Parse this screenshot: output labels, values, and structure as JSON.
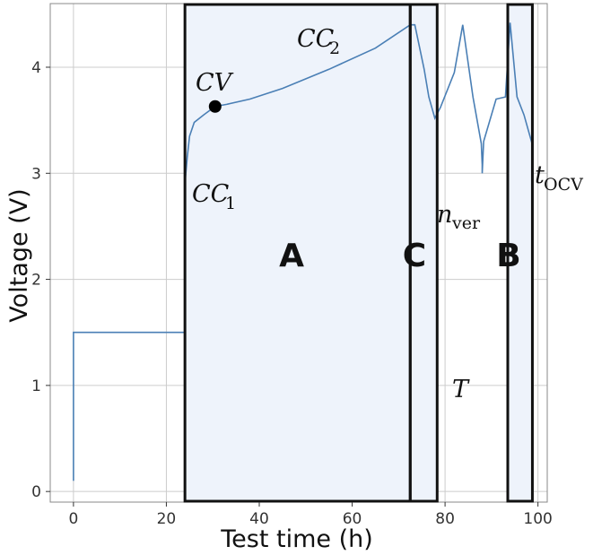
{
  "chart_data": {
    "type": "line",
    "xlabel": "Test time (h)",
    "ylabel": "Voltage (V)",
    "xlim": [
      -5,
      102
    ],
    "ylim": [
      -0.1,
      4.6
    ],
    "xticks": [
      "0",
      "20",
      "40",
      "60",
      "80",
      "100"
    ],
    "yticks": [
      "0",
      "1",
      "2",
      "3",
      "4"
    ],
    "grid": true,
    "series": [
      {
        "color": "#4a7fb5",
        "x": [
          0,
          0,
          24,
          24,
          24.5,
          25,
          26,
          28,
          30.5,
          33,
          38,
          45,
          55,
          65,
          72.5,
          73.5,
          75.5,
          76.5,
          77.8,
          79,
          82,
          83.8,
          86,
          87.8,
          88,
          88,
          88.3,
          91,
          93,
          94,
          95.5,
          97,
          98.8
        ],
        "y": [
          0.1,
          1.5,
          1.5,
          2.9,
          3.15,
          3.35,
          3.48,
          3.55,
          3.63,
          3.65,
          3.7,
          3.8,
          3.98,
          4.18,
          4.4,
          4.4,
          3.98,
          3.72,
          3.52,
          3.62,
          3.95,
          4.4,
          3.72,
          3.28,
          3.08,
          3.0,
          3.3,
          3.7,
          3.72,
          4.42,
          3.72,
          3.55,
          3.27
        ]
      }
    ],
    "marker": {
      "x": 30.5,
      "y": 3.63
    },
    "regions": [
      {
        "label": "A",
        "x0": 24,
        "x1": 72.5
      },
      {
        "label": "C",
        "x0": 72.5,
        "x1": 78.3
      },
      {
        "label": "B",
        "x0": 93.5,
        "x1": 98.8
      }
    ],
    "annotations": {
      "cc1": {
        "main": "CC",
        "sub": "1"
      },
      "cc2": {
        "main": "CC",
        "sub": "2"
      },
      "cv": {
        "main": "CV"
      },
      "nver": {
        "main": "n",
        "sub": "ver"
      },
      "tocv": {
        "main": "t",
        "sub": "OCV"
      },
      "T": {
        "main": "T"
      }
    },
    "colors": {
      "region_fill": "#eef3fb",
      "region_border": "#111111",
      "grid": "#cccccc"
    }
  }
}
